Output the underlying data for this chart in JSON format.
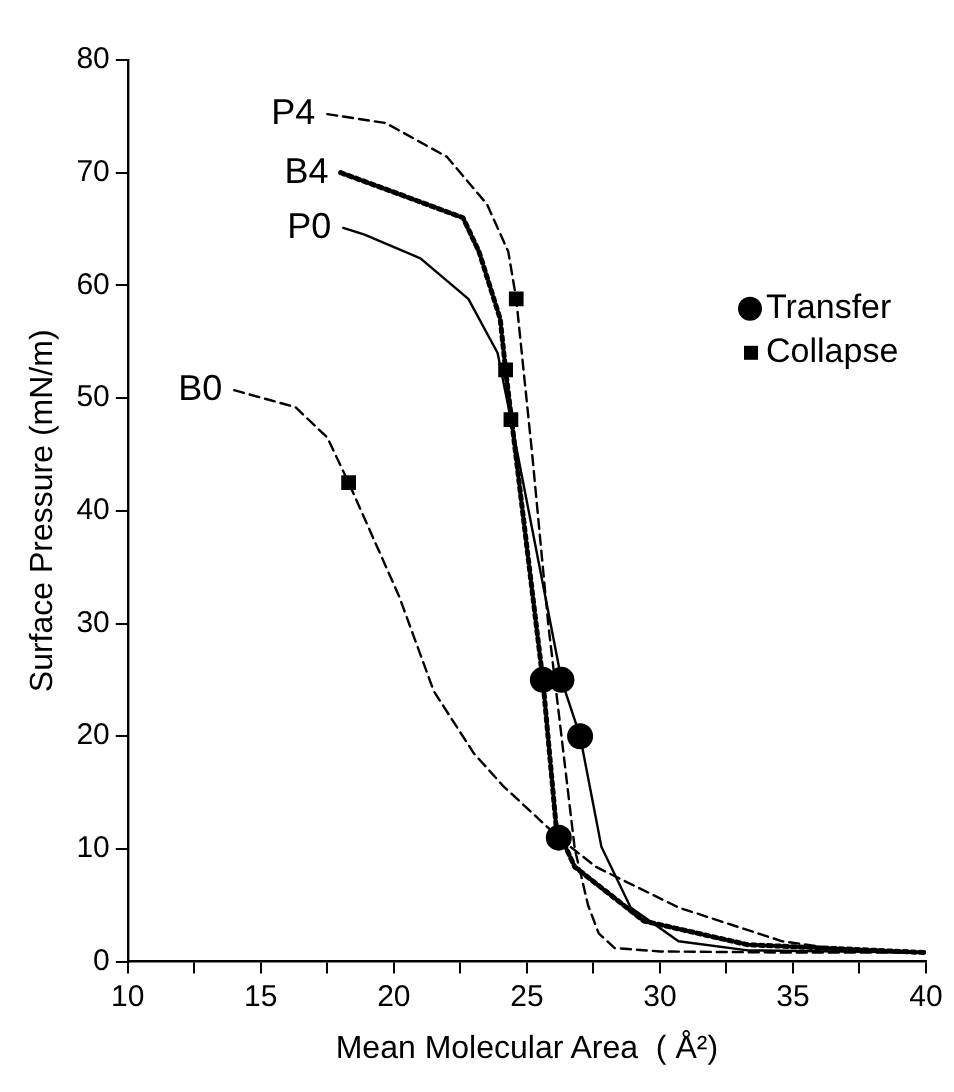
{
  "chart_data": {
    "type": "line",
    "xlabel": "Mean Molecular Area  ( Å²)",
    "ylabel": "Surface Pressure (mN/m)",
    "xlim": [
      10,
      40
    ],
    "ylim": [
      0,
      80
    ],
    "xticks": [
      10,
      {
        "value": 12.5,
        "label": null
      },
      15,
      {
        "value": 17.5,
        "label": null
      },
      20,
      {
        "value": 22.5,
        "label": null
      },
      25,
      {
        "value": 27.5,
        "label": null
      },
      30,
      {
        "value": 32.5,
        "label": null
      },
      35,
      {
        "value": 37.5,
        "label": null
      },
      40
    ],
    "yticks": [
      0,
      10,
      20,
      30,
      40,
      50,
      60,
      70,
      80
    ],
    "grid": false,
    "legend": "right",
    "series": [
      {
        "name": "P4",
        "color": "#000000",
        "line_style": "dashed",
        "x": [
          17.5,
          19.7,
          22,
          23.5,
          24.3,
          24.6,
          25.2,
          25.8,
          26.4,
          26.8,
          27.3,
          27.7,
          28.3,
          30,
          35,
          40
        ],
        "values": [
          75.2,
          74.4,
          71.4,
          67.2,
          63,
          58.8,
          45,
          30,
          18,
          10,
          5,
          2.5,
          1.2,
          0.9,
          0.8,
          0.8
        ]
      },
      {
        "name": "B4",
        "color": "#000000",
        "line_style": "dotted",
        "x": [
          18,
          20.2,
          22.6,
          23.2,
          24,
          24.2,
          25.6,
          26.1,
          26.8,
          29.4,
          33.3,
          40
        ],
        "values": [
          70,
          68.1,
          66,
          63,
          57,
          52.5,
          25,
          12,
          8.4,
          3.6,
          1.5,
          0.8
        ]
      },
      {
        "name": "P0",
        "color": "#000000",
        "line_style": "solid",
        "x": [
          18.1,
          18.9,
          21,
          22.8,
          23.9,
          24.4,
          26.3,
          27,
          27.8,
          28.9,
          30.7,
          33.3,
          40
        ],
        "values": [
          65.1,
          64.5,
          62.4,
          58.8,
          54,
          48.1,
          25,
          20,
          10.2,
          4.8,
          1.8,
          1,
          0.8
        ]
      },
      {
        "name": "B0",
        "color": "#000000",
        "line_style": "dashed",
        "x": [
          14,
          16.3,
          17.5,
          18.3,
          20.2,
          21.5,
          23,
          24.1,
          26.2,
          27.6,
          30.7,
          34.6,
          37,
          40
        ],
        "values": [
          50.7,
          49.2,
          46.5,
          42.5,
          32.4,
          24,
          18.5,
          15.6,
          11,
          8.4,
          4.8,
          1.8,
          1,
          0.8
        ]
      },
      {
        "name": "Transfer",
        "type": "scatter",
        "marker": "circle",
        "color": "#000000",
        "x": [
          25.6,
          26.3,
          27,
          26.2
        ],
        "values": [
          25,
          25,
          20,
          11
        ]
      },
      {
        "name": "Collapse",
        "type": "scatter",
        "marker": "square",
        "color": "#000000",
        "x": [
          24.6,
          24.2,
          24.4,
          18.3
        ],
        "values": [
          58.8,
          52.5,
          48.1,
          42.5
        ]
      }
    ]
  }
}
